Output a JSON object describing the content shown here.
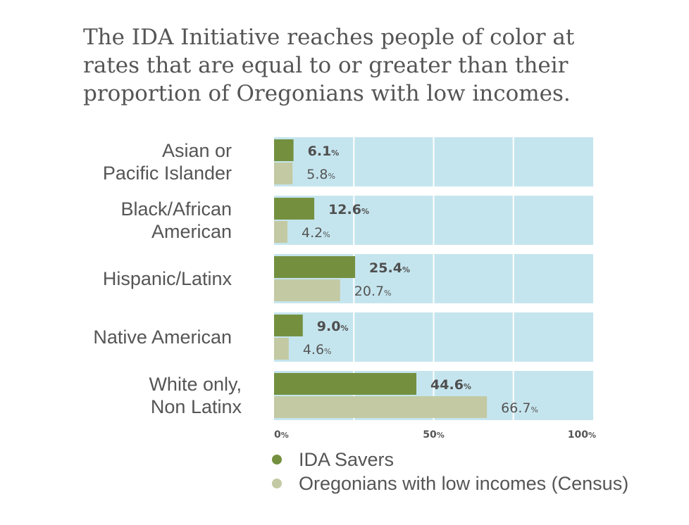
{
  "title_lines": [
    "The IDA Initiative reaches people of color at",
    "rates that are equal to or greater than their",
    "proportion of Oregonians with low incomes."
  ],
  "colors": {
    "savers": "#74903f",
    "census": "#c3c9a3",
    "panel": "#c5e5ee",
    "grid": "#ffffff"
  },
  "chart_data": {
    "type": "bar",
    "orientation": "horizontal",
    "title": "The IDA Initiative reaches people of color at rates that are equal to or greater than their proportion of Oregonians with low incomes.",
    "categories": [
      [
        "Asian or",
        "Pacific Islander"
      ],
      [
        "Black/African",
        "American"
      ],
      [
        "Hispanic/Latinx"
      ],
      [
        "Native American"
      ],
      [
        "White only,",
        "Non Latinx"
      ]
    ],
    "series": [
      {
        "name": "IDA Savers",
        "values": [
          6.1,
          12.6,
          25.4,
          9.0,
          44.6
        ],
        "labels": [
          "6.1",
          "12.6",
          "25.4",
          "9.0",
          "44.6"
        ]
      },
      {
        "name": "Oregonians with low incomes (Census)",
        "values": [
          5.8,
          4.2,
          20.7,
          4.6,
          66.7
        ],
        "labels": [
          "5.8",
          "4.2",
          "20.7",
          "4.6",
          "66.7"
        ]
      }
    ],
    "unit": "%",
    "xlim": [
      0,
      100
    ],
    "xticks": [
      {
        "value": 0,
        "label": "0"
      },
      {
        "value": 50,
        "label": "50"
      },
      {
        "value": 100,
        "label": "100"
      }
    ],
    "gridlines": [
      25,
      50,
      75
    ],
    "legend_position": "bottom"
  }
}
